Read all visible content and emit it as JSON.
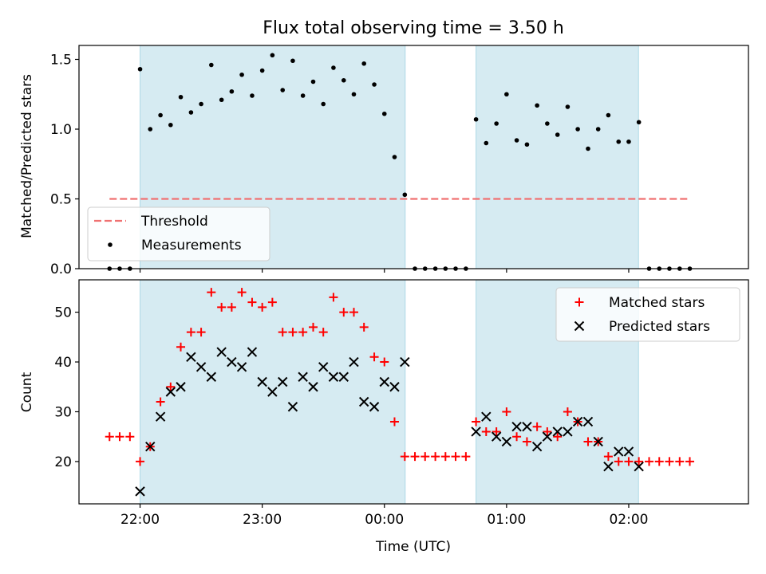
{
  "chart_data": [
    {
      "type": "scatter",
      "title": "Flux total observing time = 3.50 h",
      "xlabel": "",
      "ylabel": "Matched/Predicted stars",
      "ylim": [
        0,
        1.6
      ],
      "yticks": [
        0.0,
        0.5,
        1.0,
        1.5
      ],
      "ytick_labels": [
        "0.0",
        "0.5",
        "1.0",
        "1.5"
      ],
      "x_unit": "hours since 21:00 UTC",
      "xlim": [
        0.5,
        5.98
      ],
      "xticks": [
        1,
        2,
        3,
        4,
        5
      ],
      "xtick_labels": [
        "22:00",
        "23:00",
        "00:00",
        "01:00",
        "02:00"
      ],
      "shaded_intervals": [
        [
          1.0,
          3.17
        ],
        [
          3.75,
          5.08
        ]
      ],
      "threshold": {
        "name": "Threshold",
        "value": 0.5,
        "x_range": [
          0.75,
          5.48
        ],
        "color": "#f07171"
      },
      "legend": "lower-left",
      "series": [
        {
          "name": "Measurements",
          "color": "#000000",
          "x": [
            0.75,
            0.833,
            0.917,
            1.0,
            1.083,
            1.167,
            1.25,
            1.333,
            1.417,
            1.5,
            1.583,
            1.667,
            1.75,
            1.833,
            1.917,
            2.0,
            2.083,
            2.167,
            2.25,
            2.333,
            2.417,
            2.5,
            2.583,
            2.667,
            2.75,
            2.833,
            2.917,
            3.0,
            3.083,
            3.167,
            3.25,
            3.333,
            3.417,
            3.5,
            3.583,
            3.667,
            3.75,
            3.833,
            3.917,
            4.0,
            4.083,
            4.167,
            4.25,
            4.333,
            4.417,
            4.5,
            4.583,
            4.667,
            4.75,
            4.833,
            4.917,
            5.0,
            5.083,
            5.167,
            5.25,
            5.333,
            5.417,
            5.5
          ],
          "y": [
            0,
            0,
            0,
            1.43,
            1.0,
            1.1,
            1.03,
            1.23,
            1.12,
            1.18,
            1.46,
            1.21,
            1.27,
            1.39,
            1.24,
            1.42,
            1.53,
            1.28,
            1.49,
            1.24,
            1.34,
            1.18,
            1.44,
            1.35,
            1.25,
            1.47,
            1.32,
            1.11,
            0.8,
            0.53,
            0,
            0,
            0,
            0,
            0,
            0,
            1.07,
            0.9,
            1.04,
            1.25,
            0.92,
            0.89,
            1.17,
            1.04,
            0.96,
            1.16,
            1.0,
            0.86,
            1.0,
            1.1,
            0.91,
            0.91,
            1.05,
            0,
            0,
            0,
            0,
            0
          ]
        }
      ]
    },
    {
      "type": "scatter",
      "title": "",
      "xlabel": "Time (UTC)",
      "ylabel": "Count",
      "ylim": [
        11.5,
        56.5
      ],
      "yticks": [
        20,
        30,
        40,
        50
      ],
      "ytick_labels": [
        "20",
        "30",
        "40",
        "50"
      ],
      "x_unit": "hours since 21:00 UTC",
      "xlim": [
        0.5,
        5.98
      ],
      "xticks": [
        1,
        2,
        3,
        4,
        5
      ],
      "xtick_labels": [
        "22:00",
        "23:00",
        "00:00",
        "01:00",
        "02:00"
      ],
      "shaded_intervals": [
        [
          1.0,
          3.17
        ],
        [
          3.75,
          5.08
        ]
      ],
      "legend": "upper-right",
      "series": [
        {
          "name": "Matched stars",
          "marker": "+",
          "color": "#ff0000",
          "x": [
            0.75,
            0.833,
            0.917,
            1.0,
            1.083,
            1.167,
            1.25,
            1.333,
            1.417,
            1.5,
            1.583,
            1.667,
            1.75,
            1.833,
            1.917,
            2.0,
            2.083,
            2.167,
            2.25,
            2.333,
            2.417,
            2.5,
            2.583,
            2.667,
            2.75,
            2.833,
            2.917,
            3.0,
            3.083,
            3.167,
            3.25,
            3.333,
            3.417,
            3.5,
            3.583,
            3.667,
            3.75,
            3.833,
            3.917,
            4.0,
            4.083,
            4.167,
            4.25,
            4.333,
            4.417,
            4.5,
            4.583,
            4.667,
            4.75,
            4.833,
            4.917,
            5.0,
            5.083,
            5.167,
            5.25,
            5.333,
            5.417,
            5.5
          ],
          "y": [
            25,
            25,
            25,
            20,
            23,
            32,
            35,
            43,
            46,
            46,
            54,
            51,
            51,
            54,
            52,
            51,
            52,
            46,
            46,
            46,
            47,
            46,
            53,
            50,
            50,
            47,
            41,
            40,
            28,
            21,
            21,
            21,
            21,
            21,
            21,
            21,
            28,
            26,
            26,
            30,
            25,
            24,
            27,
            26,
            25,
            30,
            28,
            24,
            24,
            21,
            20,
            20,
            20,
            20,
            20,
            20,
            20,
            20
          ]
        },
        {
          "name": "Predicted stars",
          "marker": "x",
          "color": "#000000",
          "x": [
            1.0,
            1.083,
            1.167,
            1.25,
            1.333,
            1.417,
            1.5,
            1.583,
            1.667,
            1.75,
            1.833,
            1.917,
            2.0,
            2.083,
            2.167,
            2.25,
            2.333,
            2.417,
            2.5,
            2.583,
            2.667,
            2.75,
            2.833,
            2.917,
            3.0,
            3.083,
            3.167,
            3.75,
            3.833,
            3.917,
            4.0,
            4.083,
            4.167,
            4.25,
            4.333,
            4.417,
            4.5,
            4.583,
            4.667,
            4.75,
            4.833,
            4.917,
            5.0,
            5.083
          ],
          "y": [
            14,
            23,
            29,
            34,
            35,
            41,
            39,
            37,
            42,
            40,
            39,
            42,
            36,
            34,
            36,
            31,
            37,
            35,
            39,
            37,
            37,
            40,
            32,
            31,
            36,
            35,
            40,
            26,
            29,
            25,
            24,
            27,
            27,
            23,
            25,
            26,
            26,
            28,
            28,
            24,
            19,
            22,
            22,
            19
          ]
        }
      ]
    }
  ]
}
